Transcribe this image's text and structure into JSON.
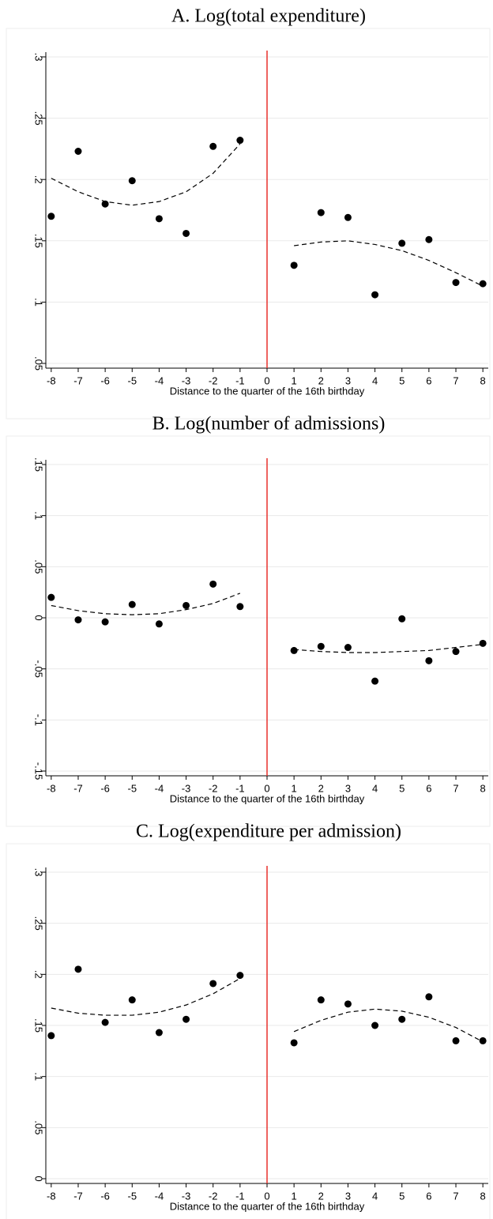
{
  "chart_data": [
    {
      "type": "scatter",
      "title": "A. Log(total expenditure)",
      "xlabel": "Distance to the quarter of the 16th birthday",
      "xlim": [
        -8.2,
        8.2
      ],
      "xticks": [
        -8,
        -7,
        -6,
        -5,
        -4,
        -3,
        -2,
        -1,
        0,
        1,
        2,
        3,
        4,
        5,
        6,
        7,
        8
      ],
      "ylim": [
        0.05,
        0.3
      ],
      "yticks": [
        {
          "value": 0.05,
          "label": ".05"
        },
        {
          "value": 0.1,
          "label": ".1"
        },
        {
          "value": 0.15,
          "label": ".15"
        },
        {
          "value": 0.2,
          "label": ".2"
        },
        {
          "value": 0.25,
          "label": ".25"
        },
        {
          "value": 0.3,
          "label": ".3"
        }
      ],
      "grid": true,
      "cutoff": 0,
      "cutoff_color": "#e8302c",
      "series": [
        {
          "style": "dots",
          "color": "#000000",
          "x": [
            -8,
            -7,
            -6,
            -5,
            -4,
            -3,
            -2,
            -1,
            1,
            2,
            3,
            4,
            5,
            6,
            7,
            8
          ],
          "values": [
            0.17,
            0.223,
            0.18,
            0.199,
            0.168,
            0.156,
            0.227,
            0.232,
            0.13,
            0.173,
            0.169,
            0.106,
            0.148,
            0.151,
            0.116,
            0.115
          ]
        },
        {
          "style": "dashed",
          "color": "#000000",
          "x": [
            -8,
            -7,
            -6,
            -5,
            -4,
            -3,
            -2,
            -1
          ],
          "values": [
            0.201,
            0.19,
            0.182,
            0.179,
            0.182,
            0.19,
            0.205,
            0.229
          ]
        },
        {
          "style": "dashed",
          "color": "#000000",
          "x": [
            1,
            2,
            3,
            4,
            5,
            6,
            7,
            8
          ],
          "values": [
            0.146,
            0.149,
            0.15,
            0.147,
            0.142,
            0.134,
            0.124,
            0.113
          ]
        }
      ]
    },
    {
      "type": "scatter",
      "title": "B. Log(number of admissions)",
      "xlabel": "Distance to the quarter of the 16th birthday",
      "xlim": [
        -8.2,
        8.2
      ],
      "xticks": [
        -8,
        -7,
        -6,
        -5,
        -4,
        -3,
        -2,
        -1,
        0,
        1,
        2,
        3,
        4,
        5,
        6,
        7,
        8
      ],
      "ylim": [
        -0.15,
        0.15
      ],
      "yticks": [
        {
          "value": -0.15,
          "label": "-.15"
        },
        {
          "value": -0.1,
          "label": "-.1"
        },
        {
          "value": -0.05,
          "label": "-.05"
        },
        0,
        {
          "value": 0.05,
          "label": ".05"
        },
        {
          "value": 0.1,
          "label": ".1"
        },
        {
          "value": 0.15,
          "label": ".15"
        }
      ],
      "grid": true,
      "cutoff": 0,
      "cutoff_color": "#e8302c",
      "series": [
        {
          "style": "dots",
          "color": "#000000",
          "x": [
            -8,
            -7,
            -6,
            -5,
            -4,
            -3,
            -2,
            -1,
            1,
            2,
            3,
            4,
            5,
            6,
            7,
            8
          ],
          "values": [
            0.02,
            -0.002,
            -0.004,
            0.013,
            -0.006,
            0.012,
            0.033,
            0.011,
            -0.032,
            -0.028,
            -0.029,
            -0.062,
            -0.001,
            -0.042,
            -0.033,
            -0.025
          ]
        },
        {
          "style": "dashed",
          "color": "#000000",
          "x": [
            -8,
            -7,
            -6,
            -5,
            -4,
            -3,
            -2,
            -1
          ],
          "values": [
            0.012,
            0.007,
            0.004,
            0.003,
            0.004,
            0.008,
            0.014,
            0.024
          ]
        },
        {
          "style": "dashed",
          "color": "#000000",
          "x": [
            1,
            2,
            3,
            4,
            5,
            6,
            7,
            8
          ],
          "values": [
            -0.031,
            -0.033,
            -0.034,
            -0.034,
            -0.033,
            -0.032,
            -0.029,
            -0.026
          ]
        }
      ]
    },
    {
      "type": "scatter",
      "title": "C. Log(expenditure per admission)",
      "xlabel": "Distance to the quarter of the 16th birthday",
      "xlim": [
        -8.2,
        8.2
      ],
      "xticks": [
        -8,
        -7,
        -6,
        -5,
        -4,
        -3,
        -2,
        -1,
        0,
        1,
        2,
        3,
        4,
        5,
        6,
        7,
        8
      ],
      "ylim": [
        0,
        0.3
      ],
      "yticks": [
        0,
        {
          "value": 0.05,
          "label": ".05"
        },
        {
          "value": 0.1,
          "label": ".1"
        },
        {
          "value": 0.15,
          "label": ".15"
        },
        {
          "value": 0.2,
          "label": ".2"
        },
        {
          "value": 0.25,
          "label": ".25"
        },
        {
          "value": 0.3,
          "label": ".3"
        }
      ],
      "grid": true,
      "cutoff": 0,
      "cutoff_color": "#e8302c",
      "series": [
        {
          "style": "dots",
          "color": "#000000",
          "x": [
            -8,
            -7,
            -6,
            -5,
            -4,
            -3,
            -2,
            -1,
            1,
            2,
            3,
            4,
            5,
            6,
            7,
            8
          ],
          "values": [
            0.14,
            0.205,
            0.153,
            0.175,
            0.143,
            0.156,
            0.191,
            0.199,
            0.133,
            0.175,
            0.171,
            0.15,
            0.156,
            0.178,
            0.135,
            0.135
          ]
        },
        {
          "style": "dashed",
          "color": "#000000",
          "x": [
            -8,
            -7,
            -6,
            -5,
            -4,
            -3,
            -2,
            -1
          ],
          "values": [
            0.167,
            0.162,
            0.16,
            0.16,
            0.163,
            0.17,
            0.181,
            0.196
          ]
        },
        {
          "style": "dashed",
          "color": "#000000",
          "x": [
            1,
            2,
            3,
            4,
            5,
            6,
            7,
            8
          ],
          "values": [
            0.144,
            0.155,
            0.163,
            0.166,
            0.164,
            0.158,
            0.148,
            0.134
          ]
        }
      ]
    }
  ]
}
